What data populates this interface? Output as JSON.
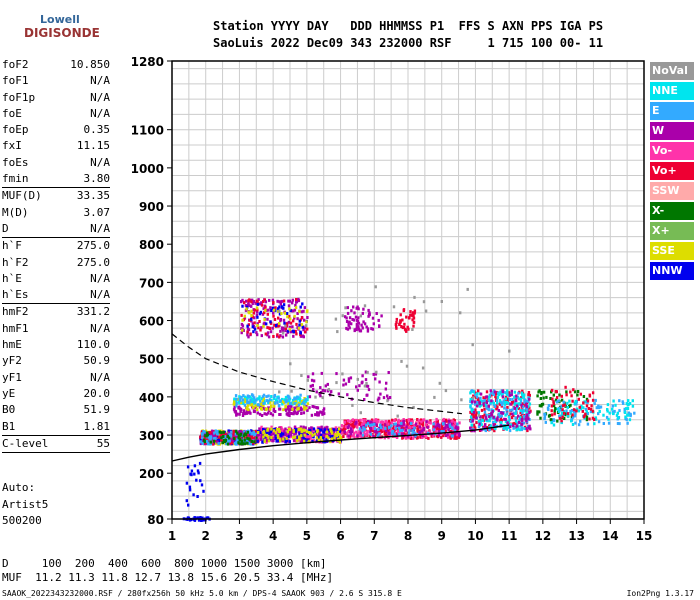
{
  "logo": {
    "line1": "Lowell",
    "line2": "DIGISONDE"
  },
  "header": {
    "line1": "Station YYYY DAY   DDD HHMMSS P1  FFS S AXN PPS IGA PS",
    "line2": "SaoLuis 2022 Dec09 343 232000 RSF     1 715 100 00- 11"
  },
  "params": [
    {
      "label": "foF2",
      "value": "10.850"
    },
    {
      "label": "foF1",
      "value": "N/A"
    },
    {
      "label": "foF1p",
      "value": "N/A"
    },
    {
      "label": "foE",
      "value": "N/A"
    },
    {
      "label": "foEp",
      "value": "0.35"
    },
    {
      "label": "fxI",
      "value": "11.15"
    },
    {
      "label": "foEs",
      "value": "N/A"
    },
    {
      "label": "fmin",
      "value": "3.80"
    },
    {
      "sep": true
    },
    {
      "label": "MUF(D)",
      "value": "33.35"
    },
    {
      "label": "M(D)",
      "value": "3.07"
    },
    {
      "label": "D",
      "value": "N/A"
    },
    {
      "sep": true
    },
    {
      "label": "h`F",
      "value": "275.0"
    },
    {
      "label": "h`F2",
      "value": "275.0"
    },
    {
      "label": "h`E",
      "value": "N/A"
    },
    {
      "label": "h`Es",
      "value": "N/A"
    },
    {
      "sep": true
    },
    {
      "label": "hmF2",
      "value": "331.2"
    },
    {
      "label": "hmF1",
      "value": "N/A"
    },
    {
      "label": "hmE",
      "value": "110.0"
    },
    {
      "label": "yF2",
      "value": "50.9"
    },
    {
      "label": "yF1",
      "value": "N/A"
    },
    {
      "label": "yE",
      "value": "20.0"
    },
    {
      "label": "B0",
      "value": "51.9"
    },
    {
      "label": "B1",
      "value": "1.81"
    },
    {
      "sep": true
    },
    {
      "label": "C-level",
      "value": "55"
    },
    {
      "sep": true
    }
  ],
  "auto": {
    "line1": "Auto:",
    "line2": "Artist5",
    "line3": "500200"
  },
  "scale": {
    "line1": "D     100  200  400  600  800 1000 1500 3000 [km]",
    "line2": "MUF  11.2 11.3 11.8 12.7 13.8 15.6 20.5 33.4 [MHz]"
  },
  "footer": "SAAOK_2022343232000.RSF / 280fx256h 50 kHz 5.0 km / DPS-4 SAAOK 903 / 2.6 S 315.8 E",
  "version": "Ion2Png 1.3.17",
  "legend": [
    {
      "label": "NoVal",
      "color": "#999999"
    },
    {
      "label": "NNE",
      "color": "#00e5ee"
    },
    {
      "label": "E",
      "color": "#33aaff"
    },
    {
      "label": "W",
      "color": "#aa00aa"
    },
    {
      "label": "Vo-",
      "color": "#ff33aa"
    },
    {
      "label": "Vo+",
      "color": "#ee0033"
    },
    {
      "label": "SSW",
      "color": "#ffaaaa"
    },
    {
      "label": "X-",
      "color": "#007700"
    },
    {
      "label": "X+",
      "color": "#77bb55"
    },
    {
      "label": "SSE",
      "color": "#dddd00"
    },
    {
      "label": "NNW",
      "color": "#0000ee"
    }
  ],
  "chart_data": {
    "type": "scatter",
    "xlim": [
      1,
      15
    ],
    "ylim": [
      80,
      1280
    ],
    "x_ticks": [
      1,
      2,
      3,
      4,
      5,
      6,
      7,
      8,
      9,
      10,
      11,
      12,
      13,
      14,
      15
    ],
    "y_ticks": [
      80,
      200,
      300,
      400,
      500,
      600,
      700,
      800,
      900,
      1000,
      1100,
      1280
    ],
    "grid": true,
    "clusters": [
      {
        "color": "#0000ee",
        "x": [
          1.3,
          2.1
        ],
        "y": [
          80,
          88
        ],
        "n": 40
      },
      {
        "color": "#0000ee",
        "x": [
          1.4,
          1.9
        ],
        "y": [
          85,
          230
        ],
        "n": 20
      },
      {
        "color": "#dddd00",
        "x": [
          1.8,
          3.5
        ],
        "y": [
          280,
          315
        ],
        "n": 200
      },
      {
        "color": "#0000ee",
        "x": [
          1.8,
          3.5
        ],
        "y": [
          280,
          315
        ],
        "n": 120
      },
      {
        "color": "#aa00aa",
        "x": [
          1.8,
          3.5
        ],
        "y": [
          280,
          315
        ],
        "n": 120
      },
      {
        "color": "#ee0033",
        "x": [
          1.8,
          3.5
        ],
        "y": [
          280,
          315
        ],
        "n": 80
      },
      {
        "color": "#33aaff",
        "x": [
          1.8,
          3.5
        ],
        "y": [
          280,
          315
        ],
        "n": 80
      },
      {
        "color": "#007700",
        "x": [
          1.8,
          3.5
        ],
        "y": [
          280,
          315
        ],
        "n": 50
      },
      {
        "color": "#ff33aa",
        "x": [
          3.5,
          6.0
        ],
        "y": [
          285,
          325
        ],
        "n": 200
      },
      {
        "color": "#aa00aa",
        "x": [
          3.5,
          6.0
        ],
        "y": [
          285,
          325
        ],
        "n": 150
      },
      {
        "color": "#0000ee",
        "x": [
          3.5,
          6.0
        ],
        "y": [
          285,
          320
        ],
        "n": 80
      },
      {
        "color": "#dddd00",
        "x": [
          3.5,
          6.0
        ],
        "y": [
          285,
          320
        ],
        "n": 80
      },
      {
        "color": "#ee0033",
        "x": [
          6.0,
          9.5
        ],
        "y": [
          295,
          345
        ],
        "n": 300
      },
      {
        "color": "#ff33aa",
        "x": [
          6.0,
          9.5
        ],
        "y": [
          295,
          345
        ],
        "n": 200
      },
      {
        "color": "#aa00aa",
        "x": [
          6.0,
          9.5
        ],
        "y": [
          300,
          340
        ],
        "n": 100
      },
      {
        "color": "#33aaff",
        "x": [
          6.5,
          9.5
        ],
        "y": [
          300,
          335
        ],
        "n": 60
      },
      {
        "color": "#aa00aa",
        "x": [
          2.8,
          5.5
        ],
        "y": [
          355,
          380
        ],
        "n": 120
      },
      {
        "color": "#00e5ee",
        "x": [
          2.8,
          5.0
        ],
        "y": [
          385,
          405
        ],
        "n": 100
      },
      {
        "color": "#dddd00",
        "x": [
          2.8,
          5.0
        ],
        "y": [
          370,
          400
        ],
        "n": 60
      },
      {
        "color": "#33aaff",
        "x": [
          2.8,
          5.0
        ],
        "y": [
          380,
          410
        ],
        "n": 60
      },
      {
        "color": "#ee0033",
        "x": [
          9.8,
          11.6
        ],
        "y": [
          315,
          420
        ],
        "n": 180
      },
      {
        "color": "#33aaff",
        "x": [
          9.8,
          11.6
        ],
        "y": [
          315,
          420
        ],
        "n": 140
      },
      {
        "color": "#00e5ee",
        "x": [
          9.8,
          11.6
        ],
        "y": [
          315,
          420
        ],
        "n": 100
      },
      {
        "color": "#aa00aa",
        "x": [
          9.8,
          11.6
        ],
        "y": [
          315,
          420
        ],
        "n": 80
      },
      {
        "color": "#007700",
        "x": [
          11.8,
          13.3
        ],
        "y": [
          340,
          420
        ],
        "n": 60
      },
      {
        "color": "#33aaff",
        "x": [
          12.0,
          14.7
        ],
        "y": [
          330,
          395
        ],
        "n": 80
      },
      {
        "color": "#00e5ee",
        "x": [
          12.0,
          14.7
        ],
        "y": [
          330,
          395
        ],
        "n": 60
      },
      {
        "color": "#ee0033",
        "x": [
          12.2,
          13.5
        ],
        "y": [
          340,
          430
        ],
        "n": 50
      },
      {
        "color": "#aa00aa",
        "x": [
          3.0,
          5.0
        ],
        "y": [
          560,
          660
        ],
        "n": 140
      },
      {
        "color": "#ee0033",
        "x": [
          3.0,
          5.0
        ],
        "y": [
          560,
          660
        ],
        "n": 60
      },
      {
        "color": "#0000ee",
        "x": [
          3.0,
          5.0
        ],
        "y": [
          570,
          650
        ],
        "n": 40
      },
      {
        "color": "#dddd00",
        "x": [
          3.0,
          5.0
        ],
        "y": [
          570,
          650
        ],
        "n": 30
      },
      {
        "color": "#aa00aa",
        "x": [
          6.1,
          7.2
        ],
        "y": [
          575,
          640
        ],
        "n": 60
      },
      {
        "color": "#ee0033",
        "x": [
          7.6,
          8.2
        ],
        "y": [
          575,
          640
        ],
        "n": 40
      },
      {
        "color": "#aa00aa",
        "x": [
          5.0,
          7.5
        ],
        "y": [
          395,
          470
        ],
        "n": 60
      },
      {
        "color": "#999999",
        "x": [
          4.0,
          11.0
        ],
        "y": [
          350,
          700
        ],
        "n": 50
      }
    ],
    "dashed_curve": [
      [
        1.0,
        565
      ],
      [
        1.5,
        530
      ],
      [
        2.0,
        500
      ],
      [
        3.0,
        465
      ],
      [
        4.0,
        440
      ],
      [
        5.0,
        418
      ],
      [
        6.0,
        400
      ],
      [
        7.0,
        385
      ],
      [
        8.0,
        372
      ],
      [
        9.0,
        362
      ],
      [
        9.6,
        356
      ]
    ],
    "solid_curve": [
      [
        1.0,
        232
      ],
      [
        1.5,
        242
      ],
      [
        2.0,
        250
      ],
      [
        3.0,
        262
      ],
      [
        4.0,
        272
      ],
      [
        5.0,
        280
      ],
      [
        6.0,
        287
      ],
      [
        7.0,
        293
      ],
      [
        8.0,
        299
      ],
      [
        9.0,
        305
      ],
      [
        10.0,
        313
      ],
      [
        11.0,
        326
      ]
    ]
  }
}
